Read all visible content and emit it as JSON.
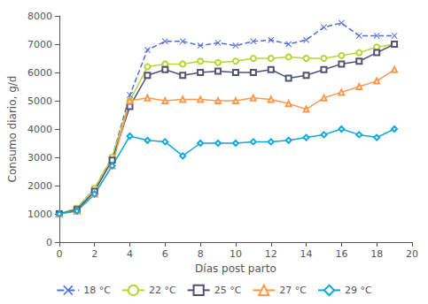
{
  "chart_data": {
    "type": "line",
    "xlabel": "Días post parto",
    "ylabel": "Consumo diario, g/d",
    "xlim": [
      0,
      20
    ],
    "ylim": [
      0,
      8000
    ],
    "xticks": [
      0,
      2,
      4,
      6,
      8,
      10,
      12,
      14,
      16,
      18,
      20
    ],
    "yticks": [
      0,
      1000,
      2000,
      3000,
      4000,
      5000,
      6000,
      7000,
      8000
    ],
    "grid": false,
    "legend": "bottom",
    "x": [
      0,
      1,
      2,
      3,
      4,
      5,
      6,
      7,
      8,
      9,
      10,
      11,
      12,
      13,
      14,
      15,
      16,
      17,
      18,
      19
    ],
    "series": [
      {
        "name": "18 °C",
        "marker": "x",
        "line_style": "dashed",
        "values": [
          1000,
          1200,
          1900,
          3000,
          5200,
          6800,
          7100,
          7100,
          6950,
          7050,
          6950,
          7100,
          7150,
          7000,
          7150,
          7600,
          7750,
          7300,
          7300,
          7300
        ]
      },
      {
        "name": "22 °C",
        "marker": "circle",
        "line_style": "solid",
        "values": [
          1000,
          1200,
          1900,
          3000,
          5000,
          6200,
          6300,
          6300,
          6400,
          6350,
          6400,
          6500,
          6500,
          6550,
          6500,
          6500,
          6600,
          6700,
          6900,
          7000
        ]
      },
      {
        "name": "25 °C",
        "marker": "square",
        "line_style": "solid",
        "values": [
          1000,
          1150,
          1800,
          2900,
          4800,
          5900,
          6100,
          5900,
          6000,
          6050,
          6000,
          6000,
          6100,
          5800,
          5900,
          6100,
          6300,
          6400,
          6700,
          7000
        ]
      },
      {
        "name": "27 °C",
        "marker": "triangle",
        "line_style": "solid",
        "values": [
          1000,
          1100,
          1700,
          2700,
          5000,
          5100,
          5000,
          5050,
          5050,
          5000,
          5000,
          5100,
          5050,
          4900,
          4700,
          5100,
          5300,
          5500,
          5700,
          6100
        ]
      },
      {
        "name": "29 °C",
        "marker": "diamond",
        "line_style": "solid",
        "values": [
          1000,
          1100,
          1700,
          2700,
          3750,
          3600,
          3550,
          3050,
          3500,
          3500,
          3500,
          3550,
          3550,
          3600,
          3700,
          3800,
          4000,
          3800,
          3700,
          4000
        ]
      }
    ]
  }
}
